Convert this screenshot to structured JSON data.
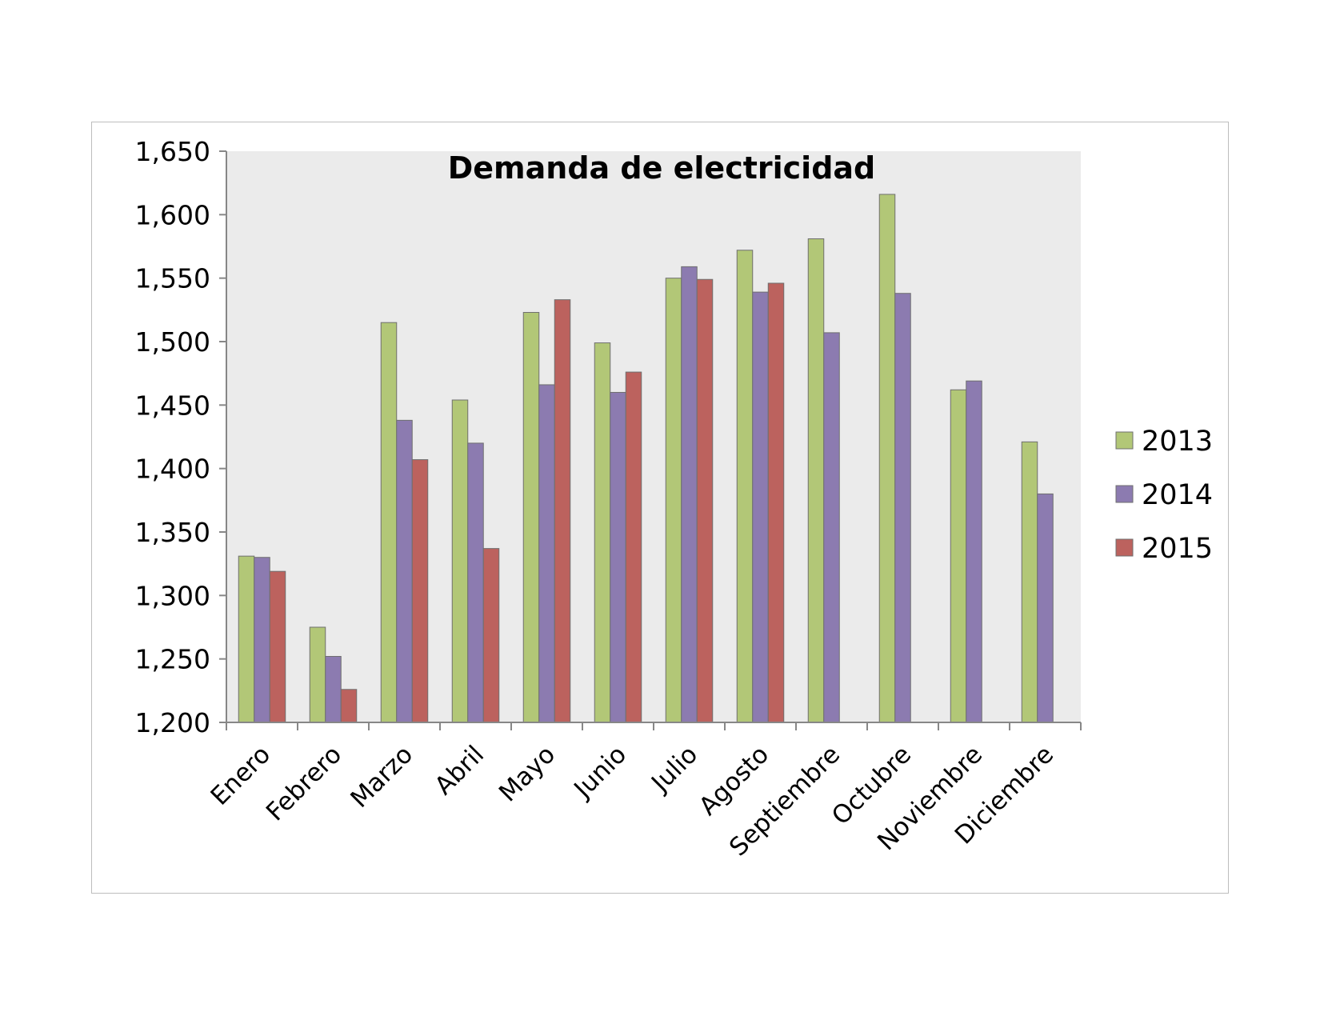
{
  "chart_data": {
    "type": "bar",
    "title": "Demanda de electricidad",
    "xlabel": "",
    "ylabel": "",
    "ylim": [
      1200,
      1650
    ],
    "yticks": [
      1200,
      1250,
      1300,
      1350,
      1400,
      1450,
      1500,
      1550,
      1600,
      1650
    ],
    "ytick_labels": [
      "1,200",
      "1,250",
      "1,300",
      "1,350",
      "1,400",
      "1,450",
      "1,500",
      "1,550",
      "1,600",
      "1,650"
    ],
    "grid": false,
    "legend_position": "right",
    "categories": [
      "Enero",
      "Febrero",
      "Marzo",
      "Abril",
      "Mayo",
      "Junio",
      "Julio",
      "Agosto",
      "Septiembre",
      "Octubre",
      "Noviembre",
      "Diciembre"
    ],
    "series": [
      {
        "name": "2013",
        "color": "#b2c777",
        "values": [
          1331,
          1275,
          1515,
          1454,
          1523,
          1499,
          1550,
          1572,
          1581,
          1616,
          1462,
          1421
        ]
      },
      {
        "name": "2014",
        "color": "#8c7bb0",
        "values": [
          1330,
          1252,
          1438,
          1420,
          1466,
          1460,
          1559,
          1539,
          1507,
          1538,
          1469,
          1380
        ]
      },
      {
        "name": "2015",
        "color": "#bc625e",
        "values": [
          1319,
          1226,
          1407,
          1337,
          1533,
          1476,
          1549,
          1546,
          null,
          null,
          null,
          null
        ]
      }
    ]
  }
}
